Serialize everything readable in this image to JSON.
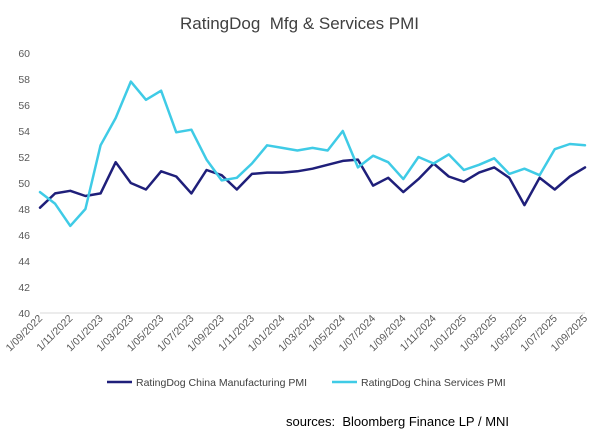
{
  "title": "RatingDog  Mfg & Services PMI",
  "source": "sources:  Bloomberg Finance LP / MNI",
  "colors": {
    "manufacturing": "#1f1f7a",
    "services": "#3fcbe6",
    "axis": "#d9d9d9",
    "text": "#595959"
  },
  "chart_data": {
    "type": "line",
    "ylim": [
      40,
      60
    ],
    "yticks": [
      40,
      42,
      44,
      46,
      48,
      50,
      52,
      54,
      56,
      58,
      60
    ],
    "x": [
      "1/09/2022",
      "1/10/2022",
      "1/11/2022",
      "1/12/2022",
      "1/01/2023",
      "1/02/2023",
      "1/03/2023",
      "1/04/2023",
      "1/05/2023",
      "1/06/2023",
      "1/07/2023",
      "1/08/2023",
      "1/09/2023",
      "1/10/2023",
      "1/11/2023",
      "1/12/2023",
      "1/01/2024",
      "1/02/2024",
      "1/03/2024",
      "1/04/2024",
      "1/05/2024",
      "1/06/2024",
      "1/07/2024",
      "1/08/2024",
      "1/09/2024",
      "1/10/2024",
      "1/11/2024",
      "1/12/2024",
      "1/01/2025",
      "1/02/2025",
      "1/03/2025",
      "1/04/2025",
      "1/05/2025",
      "1/06/2025",
      "1/07/2025",
      "1/08/2025",
      "1/09/2025"
    ],
    "xtick_labels": [
      "1/09/2022",
      "1/11/2022",
      "1/01/2023",
      "1/03/2023",
      "1/05/2023",
      "1/07/2023",
      "1/09/2023",
      "1/11/2023",
      "1/01/2024",
      "1/03/2024",
      "1/05/2024",
      "1/07/2024",
      "1/09/2024",
      "1/11/2024",
      "1/01/2025",
      "1/03/2025",
      "1/05/2025",
      "1/07/2025",
      "1/09/2025"
    ],
    "series": [
      {
        "name": "RatingDog China Manufacturing PMI",
        "color": "#1f1f7a",
        "values": [
          48.1,
          49.2,
          49.4,
          49.0,
          49.2,
          51.6,
          50.0,
          49.5,
          50.9,
          50.5,
          49.2,
          51.0,
          50.6,
          49.5,
          50.7,
          50.8,
          50.8,
          50.9,
          51.1,
          51.4,
          51.7,
          51.8,
          49.8,
          50.4,
          49.3,
          50.3,
          51.5,
          50.5,
          50.1,
          50.8,
          51.2,
          50.4,
          48.3,
          50.4,
          49.5,
          50.5,
          51.2
        ]
      },
      {
        "name": "RatingDog China Services PMI",
        "color": "#3fcbe6",
        "values": [
          49.3,
          48.4,
          46.7,
          48.0,
          52.9,
          55.0,
          57.8,
          56.4,
          57.1,
          53.9,
          54.1,
          51.8,
          50.2,
          50.4,
          51.5,
          52.9,
          52.7,
          52.5,
          52.7,
          52.5,
          54.0,
          51.2,
          52.1,
          51.6,
          50.3,
          52.0,
          51.5,
          52.2,
          51.0,
          51.4,
          51.9,
          50.7,
          51.1,
          50.6,
          52.6,
          53.0,
          52.9
        ]
      }
    ],
    "legend": "bottom",
    "grid": false
  }
}
